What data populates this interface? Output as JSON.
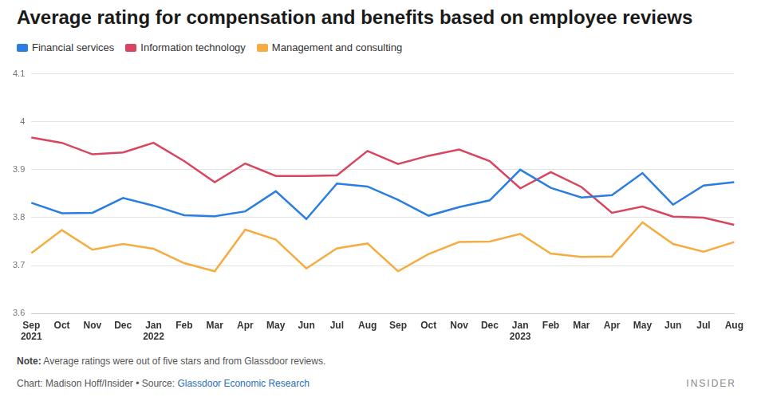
{
  "chart_data": {
    "type": "line",
    "title": "Average rating for compensation and benefits based on employee reviews",
    "categories": [
      "Sep 2021",
      "Oct",
      "Nov",
      "Dec",
      "Jan 2022",
      "Feb",
      "Mar",
      "Apr",
      "May",
      "Jun",
      "Jul",
      "Aug",
      "Sep",
      "Oct",
      "Nov",
      "Dec",
      "Jan 2023",
      "Feb",
      "Mar",
      "Apr",
      "May",
      "Jun",
      "Jul",
      "Aug"
    ],
    "series": [
      {
        "name": "Financial services",
        "color": "#2a7de1",
        "values": [
          3.831,
          3.809,
          3.81,
          3.841,
          3.825,
          3.805,
          3.803,
          3.813,
          3.855,
          3.797,
          3.871,
          3.865,
          3.837,
          3.804,
          3.822,
          3.836,
          3.9,
          3.862,
          3.842,
          3.847,
          3.893,
          3.827,
          3.867,
          3.874
        ]
      },
      {
        "name": "Information technology",
        "color": "#d9455f",
        "values": [
          3.967,
          3.956,
          3.932,
          3.936,
          3.956,
          3.918,
          3.874,
          3.913,
          3.887,
          3.887,
          3.888,
          3.939,
          3.912,
          3.929,
          3.942,
          3.918,
          3.861,
          3.895,
          3.864,
          3.81,
          3.823,
          3.802,
          3.8,
          3.785
        ]
      },
      {
        "name": "Management and consulting",
        "color": "#f5ad42",
        "values": [
          3.726,
          3.774,
          3.733,
          3.745,
          3.735,
          3.705,
          3.688,
          3.775,
          3.754,
          3.694,
          3.736,
          3.746,
          3.688,
          3.724,
          3.749,
          3.75,
          3.766,
          3.725,
          3.718,
          3.719,
          3.79,
          3.745,
          3.729,
          3.749
        ]
      }
    ],
    "ylim": [
      3.6,
      4.1
    ],
    "yticks": [
      3.6,
      3.7,
      3.8,
      3.9,
      4,
      4.1
    ],
    "grid": true,
    "legend": "top-left",
    "note_label": "Note:",
    "note": "Average ratings were out of five stars and from Glassdoor reviews.",
    "credit": "Chart: Madison Hoff/Insider • Source:",
    "source_link": "Glassdoor Economic Research",
    "brand": "INSIDER"
  }
}
